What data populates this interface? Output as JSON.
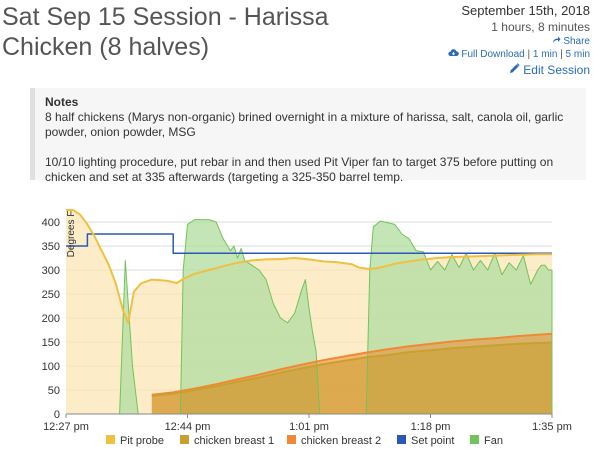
{
  "header": {
    "title_line1": "Sat Sep 15 Session - Harissa",
    "title_line2": "Chicken (8 halves)"
  },
  "meta": {
    "date": "September 15th, 2018",
    "duration": "1 hours, 8 minutes",
    "share_label": "Share",
    "download_label": "Full Download",
    "download_1min": "1 min",
    "download_5min": "5 min",
    "separator": "|",
    "edit_label": "Edit Session"
  },
  "notes": {
    "heading": "Notes",
    "paragraph1": "8 half chickens (Marys non-organic) brined overnight in a mixture of harissa, salt, canola oil, garlic powder, onion powder, MSG",
    "paragraph2": "10/10 lighting procedure, put rebar in and then used Pit Viper fan to target 375 before putting on chicken and set at 335 afterwards (targeting a 325-350 barrel temp."
  },
  "colors": {
    "pit_probe": "#f0c040",
    "pit_fill": "#fbe6b5",
    "breast1": "#c9a030",
    "breast2": "#ee8a33",
    "set_point": "#2b58b5",
    "fan": "#72c35a",
    "fan_fill": "#b5dfa4",
    "link": "#2a6db5"
  },
  "chart_data": {
    "type": "line",
    "ylabel": "Degrees F",
    "y_ticks": [
      0,
      50,
      100,
      150,
      200,
      250,
      300,
      350,
      400
    ],
    "ylim": [
      0,
      430
    ],
    "x_range_minutes": [
      0,
      68
    ],
    "x_ticks": [
      {
        "label": "12:27 pm",
        "minute": 0
      },
      {
        "label": "12:44 pm",
        "minute": 17
      },
      {
        "label": "1:01 pm",
        "minute": 34
      },
      {
        "label": "1:18 pm",
        "minute": 51
      },
      {
        "label": "1:35 pm",
        "minute": 68
      }
    ],
    "grid": true,
    "legend_position": "bottom",
    "series": [
      {
        "name": "Pit probe",
        "key": "pit",
        "fill": true,
        "points": [
          [
            0,
            440
          ],
          [
            1,
            430
          ],
          [
            2,
            415
          ],
          [
            3,
            395
          ],
          [
            4,
            370
          ],
          [
            5,
            340
          ],
          [
            6,
            310
          ],
          [
            7,
            270
          ],
          [
            8,
            215
          ],
          [
            8.7,
            190
          ],
          [
            9.5,
            255
          ],
          [
            10.5,
            272
          ],
          [
            12,
            280
          ],
          [
            14,
            278
          ],
          [
            15.5,
            273
          ],
          [
            16.5,
            282
          ],
          [
            18,
            292
          ],
          [
            20,
            300
          ],
          [
            22,
            308
          ],
          [
            24,
            315
          ],
          [
            26,
            320
          ],
          [
            28,
            322
          ],
          [
            30,
            323
          ],
          [
            32,
            325
          ],
          [
            34,
            322
          ],
          [
            36,
            318
          ],
          [
            38,
            316
          ],
          [
            40,
            312
          ],
          [
            41,
            305
          ],
          [
            42.5,
            302
          ],
          [
            44,
            305
          ],
          [
            46,
            313
          ],
          [
            48,
            318
          ],
          [
            50,
            322
          ],
          [
            52,
            325
          ],
          [
            54,
            327
          ],
          [
            56,
            328
          ],
          [
            58,
            329
          ],
          [
            60,
            330
          ],
          [
            62,
            331
          ],
          [
            64,
            332
          ],
          [
            66,
            333
          ],
          [
            68,
            333
          ]
        ]
      },
      {
        "name": "chicken breast 1",
        "key": "b1",
        "fill": true,
        "points": [
          [
            12,
            38
          ],
          [
            15,
            42
          ],
          [
            18,
            50
          ],
          [
            21,
            58
          ],
          [
            24,
            67
          ],
          [
            27,
            76
          ],
          [
            30,
            86
          ],
          [
            33,
            95
          ],
          [
            36,
            104
          ],
          [
            39,
            111
          ],
          [
            42,
            118
          ],
          [
            45,
            123
          ],
          [
            48,
            129
          ],
          [
            51,
            133
          ],
          [
            54,
            137
          ],
          [
            57,
            140
          ],
          [
            60,
            143
          ],
          [
            63,
            146
          ],
          [
            66,
            148
          ],
          [
            68,
            149
          ]
        ]
      },
      {
        "name": "chicken breast 2",
        "key": "b2",
        "fill": true,
        "points": [
          [
            12,
            40
          ],
          [
            15,
            45
          ],
          [
            18,
            53
          ],
          [
            21,
            62
          ],
          [
            24,
            72
          ],
          [
            27,
            82
          ],
          [
            30,
            93
          ],
          [
            33,
            103
          ],
          [
            36,
            112
          ],
          [
            39,
            120
          ],
          [
            42,
            128
          ],
          [
            45,
            135
          ],
          [
            48,
            141
          ],
          [
            51,
            146
          ],
          [
            54,
            151
          ],
          [
            57,
            155
          ],
          [
            60,
            158
          ],
          [
            63,
            162
          ],
          [
            66,
            165
          ],
          [
            68,
            167
          ]
        ]
      },
      {
        "name": "Set point",
        "key": "setp",
        "fill": false,
        "points": [
          [
            0,
            350
          ],
          [
            3,
            350
          ],
          [
            3,
            375
          ],
          [
            15,
            375
          ],
          [
            15,
            335
          ],
          [
            68,
            335
          ]
        ]
      },
      {
        "name": "Fan",
        "key": "fan",
        "fill": true,
        "points": [
          [
            0,
            0
          ],
          [
            7.5,
            0
          ],
          [
            8.3,
            320
          ],
          [
            9.3,
            100
          ],
          [
            10.1,
            0
          ],
          [
            16,
            0
          ],
          [
            16.4,
            300
          ],
          [
            17,
            395
          ],
          [
            18,
            405
          ],
          [
            20,
            405
          ],
          [
            21,
            400
          ],
          [
            22,
            365
          ],
          [
            23,
            340
          ],
          [
            23.5,
            350
          ],
          [
            24,
            325
          ],
          [
            24.5,
            345
          ],
          [
            25,
            320
          ],
          [
            26,
            310
          ],
          [
            27,
            300
          ],
          [
            28,
            280
          ],
          [
            29,
            230
          ],
          [
            30,
            200
          ],
          [
            31,
            190
          ],
          [
            32,
            210
          ],
          [
            33,
            260
          ],
          [
            33.5,
            280
          ],
          [
            34,
            220
          ],
          [
            34.5,
            170
          ],
          [
            35,
            130
          ],
          [
            35.5,
            0
          ],
          [
            42,
            0
          ],
          [
            42.5,
            300
          ],
          [
            43,
            390
          ],
          [
            44,
            402
          ],
          [
            46,
            395
          ],
          [
            47,
            375
          ],
          [
            48,
            365
          ],
          [
            49,
            340
          ],
          [
            50,
            338
          ],
          [
            51,
            300
          ],
          [
            52,
            318
          ],
          [
            53,
            300
          ],
          [
            54,
            332
          ],
          [
            55,
            305
          ],
          [
            56,
            335
          ],
          [
            57,
            300
          ],
          [
            58,
            320
          ],
          [
            59,
            300
          ],
          [
            60,
            335
          ],
          [
            61,
            290
          ],
          [
            62,
            315
          ],
          [
            63,
            300
          ],
          [
            64,
            330
          ],
          [
            65,
            270
          ],
          [
            66,
            300
          ],
          [
            66.5,
            310
          ],
          [
            67,
            310
          ],
          [
            67.5,
            300
          ],
          [
            68,
            300
          ],
          [
            68,
            0
          ]
        ]
      }
    ]
  }
}
